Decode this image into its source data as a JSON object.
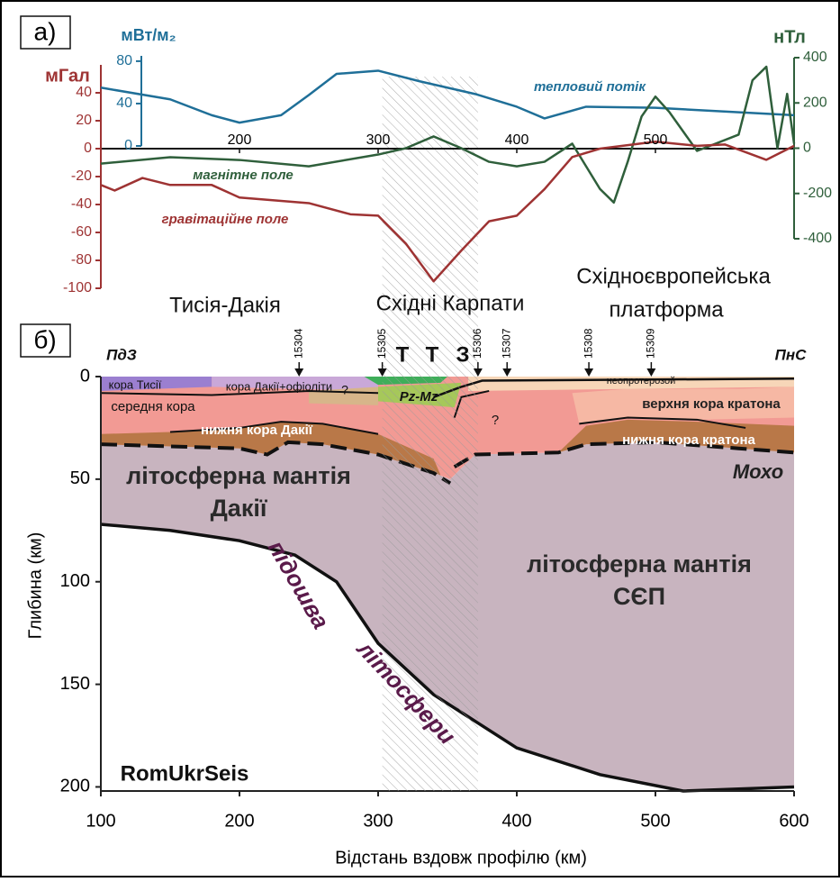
{
  "chart_data": [
    {
      "type": "line",
      "panel_label": "а)",
      "xlim": [
        100,
        600
      ],
      "xticks": [
        200,
        300,
        400,
        500
      ],
      "ylabel": "мГал",
      "ylim": [
        -100,
        60
      ],
      "yticks": [
        40,
        20,
        0,
        -20,
        -40,
        -60,
        -80,
        -100
      ],
      "y2label": "нТл",
      "y2lim": [
        -400,
        400
      ],
      "y2ticks": [
        400,
        200,
        0,
        -200,
        -400
      ],
      "y3label": "мВт/м₂",
      "y3lim": [
        0,
        85
      ],
      "y3ticks": [
        80,
        40,
        0
      ],
      "hatch_xlim": [
        303,
        372
      ],
      "series": [
        {
          "name": "тепловий потік",
          "color": "#1f6f98",
          "axis": "y3",
          "x": [
            100,
            150,
            180,
            200,
            230,
            250,
            270,
            300,
            330,
            370,
            400,
            420,
            450,
            500,
            600
          ],
          "values": [
            55,
            44,
            29,
            22,
            29,
            48,
            68,
            71,
            61,
            49,
            37,
            26,
            37,
            36,
            29
          ]
        },
        {
          "name": "магнітне поле",
          "color": "#2f5f3b",
          "axis": "y2",
          "x": [
            100,
            150,
            200,
            250,
            300,
            320,
            340,
            360,
            380,
            400,
            420,
            440,
            460,
            470,
            480,
            490,
            500,
            510,
            530,
            560,
            570,
            580,
            588,
            595,
            600
          ],
          "values": [
            -68,
            -40,
            -52,
            -80,
            -28,
            0,
            52,
            0,
            -60,
            -80,
            -60,
            20,
            -180,
            -240,
            -60,
            140,
            228,
            160,
            -12,
            60,
            300,
            360,
            0,
            240,
            20
          ]
        },
        {
          "name": "гравітаційне поле",
          "color": "#9e3333",
          "axis": "y",
          "x": [
            100,
            110,
            130,
            150,
            180,
            200,
            250,
            280,
            300,
            320,
            340,
            360,
            380,
            400,
            420,
            440,
            460,
            500,
            530,
            550,
            580,
            600
          ],
          "values": [
            -26,
            -30,
            -21,
            -26,
            -26,
            -35,
            -39,
            -47,
            -48,
            -68,
            -95,
            -73,
            -52,
            -48,
            -29,
            -6,
            0,
            5,
            2,
            3,
            -8,
            2
          ]
        }
      ]
    },
    {
      "type": "section",
      "panel_label": "б)",
      "xlabel": "Відстань вздовж профілю (км)",
      "ylabel": "Глибина (км)",
      "xlim": [
        100,
        600
      ],
      "xticks": [
        100,
        200,
        300,
        400,
        500,
        600
      ],
      "ylim": [
        0,
        202
      ],
      "yticks": [
        0,
        50,
        100,
        150,
        200
      ],
      "inverted": true,
      "stations": [
        {
          "value": 243,
          "label": "15304"
        },
        {
          "value": 303,
          "label": "15305"
        },
        {
          "value": 372,
          "label": "15306"
        },
        {
          "value": 393,
          "label": "15307"
        },
        {
          "value": 452,
          "label": "15308"
        },
        {
          "value": 497,
          "label": "15309"
        }
      ],
      "regions": [
        {
          "color": "#c8b4bf",
          "x": [
            100,
            200,
            220,
            235,
            260,
            300,
            340,
            352,
            370,
            430,
            450,
            500,
            560,
            600,
            600,
            520,
            460,
            400,
            370,
            340,
            300,
            270,
            240,
            200,
            150,
            100
          ],
          "d": [
            33,
            35,
            38,
            32,
            33,
            38,
            47,
            50,
            38,
            37,
            33,
            32,
            35,
            37,
            200,
            202,
            194,
            181,
            168,
            155,
            130,
            100,
            87,
            80,
            75,
            72
          ]
        },
        {
          "color": "#f29a94",
          "x": [
            100,
            600,
            600,
            560,
            500,
            450,
            430,
            370,
            352,
            340,
            300,
            260,
            235,
            220,
            200,
            100
          ],
          "d": [
            0,
            0,
            37,
            35,
            32,
            33,
            37,
            38,
            50,
            47,
            38,
            33,
            32,
            38,
            35,
            33
          ]
        },
        {
          "color": "#b97848",
          "x": [
            100,
            150,
            200,
            230,
            260,
            300,
            340,
            345,
            340,
            300,
            260,
            235,
            220,
            200,
            100
          ],
          "d": [
            28,
            27,
            25,
            22,
            23,
            28,
            40,
            48,
            47,
            38,
            33,
            32,
            38,
            35,
            33
          ]
        },
        {
          "color": "#b97848",
          "x": [
            430,
            450,
            480,
            530,
            600,
            600,
            560,
            500,
            450,
            430
          ],
          "d": [
            37,
            24,
            21,
            22,
            24,
            37,
            35,
            32,
            33,
            37
          ]
        },
        {
          "color": "#f6b8a4",
          "x": [
            440,
            480,
            560,
            600,
            600,
            530,
            480,
            445
          ],
          "d": [
            8,
            6,
            6,
            5,
            20,
            21,
            20,
            23
          ]
        },
        {
          "color": "#f7d6b8",
          "x": [
            365,
            600,
            600,
            365
          ],
          "d": [
            0,
            0,
            5,
            7
          ]
        },
        {
          "color": "#9b7fd0",
          "x": [
            100,
            180,
            180,
            100
          ],
          "d": [
            0,
            0,
            5,
            7
          ]
        },
        {
          "color": "#c9a8d8",
          "x": [
            180,
            300,
            300,
            180
          ],
          "d": [
            0,
            0,
            7,
            5
          ]
        },
        {
          "color": "#d7b58a",
          "x": [
            250,
            300,
            300,
            250
          ],
          "d": [
            7,
            5,
            14,
            13
          ]
        },
        {
          "color": "#3fae5a",
          "x": [
            290,
            350,
            345,
            300
          ],
          "d": [
            0,
            0,
            3,
            4
          ]
        },
        {
          "color": "#a6c85a",
          "x": [
            300,
            360,
            355,
            300
          ],
          "d": [
            5,
            3,
            15,
            12
          ]
        }
      ],
      "lines": [
        {
          "x": [
            100,
            180,
            250,
            300
          ],
          "d": [
            8,
            9,
            7,
            8
          ],
          "width": 2
        },
        {
          "x": [
            150,
            200,
            230,
            260,
            300
          ],
          "d": [
            27,
            25,
            22,
            23,
            28
          ],
          "width": 2
        },
        {
          "x": [
            445,
            480,
            530,
            565
          ],
          "d": [
            23,
            20,
            21,
            25
          ],
          "width": 2
        },
        {
          "x": [
            340,
            360,
            375,
            600
          ],
          "d": [
            10,
            5,
            2,
            1
          ],
          "width": 2.5
        },
        {
          "x": [
            355,
            360,
            380
          ],
          "d": [
            20,
            10,
            7
          ],
          "width": 2
        },
        {
          "x": [
            100,
            200,
            220,
            235,
            260,
            300,
            340,
            352
          ],
          "d": [
            33,
            35,
            38,
            32,
            33,
            38,
            47,
            52
          ],
          "width": 4,
          "dashed": true
        },
        {
          "x": [
            355,
            370,
            430,
            450,
            500,
            560,
            600
          ],
          "d": [
            44,
            38,
            37,
            33,
            32,
            35,
            37
          ],
          "width": 4,
          "dashed": true
        },
        {
          "x": [
            100,
            150,
            200,
            240,
            270,
            300,
            340,
            370,
            400,
            460,
            520,
            600
          ],
          "d": [
            72,
            75,
            80,
            87,
            100,
            130,
            155,
            168,
            181,
            194,
            202,
            200
          ],
          "width": 3.5
        }
      ],
      "labels": [
        "Тисія-Дакія",
        "Східні Карпати",
        "Східноєвропейська",
        "платформа",
        "ПдЗ",
        "ПнС",
        "кора Тисії",
        "кора Дакії+офіоліти",
        "?",
        "Pz-Mz",
        "неопротерозой",
        "верхня кора кратона",
        "середня кора",
        "нижня кора Дакії",
        "?",
        "нижня кора кратона",
        "літосферна мантія",
        "Дакії",
        "Мохо",
        "літосферна мантія",
        "СЄП",
        "підошва",
        "літосфери",
        "RomUkrSeis",
        "Т",
        "Т",
        "З"
      ]
    }
  ]
}
